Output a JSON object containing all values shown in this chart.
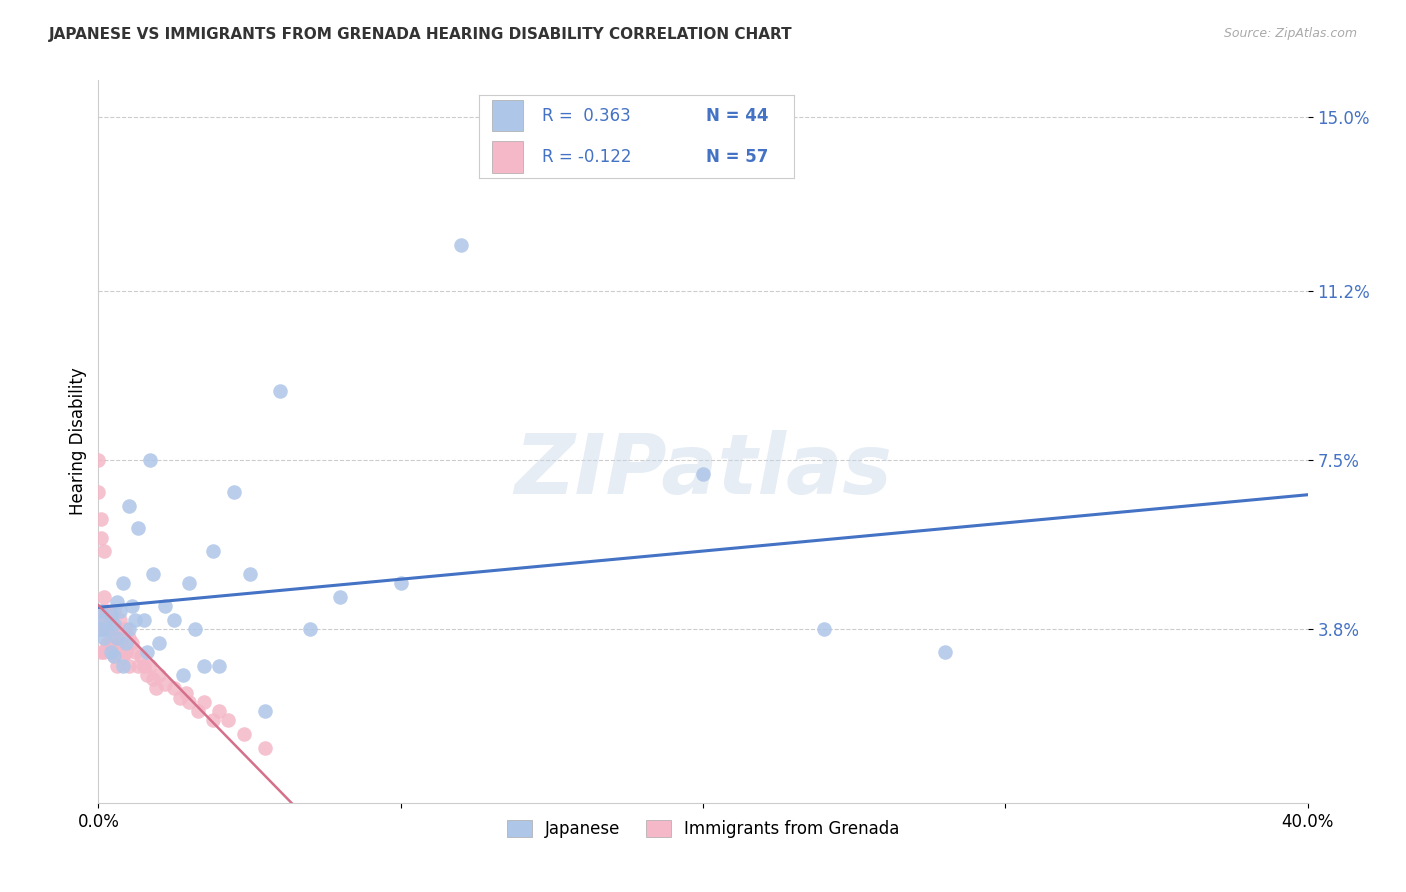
{
  "title": "JAPANESE VS IMMIGRANTS FROM GRENADA HEARING DISABILITY CORRELATION CHART",
  "source": "Source: ZipAtlas.com",
  "ylabel": "Hearing Disability",
  "watermark": "ZIPatlas",
  "xlim": [
    0.0,
    0.4
  ],
  "ylim": [
    0.0,
    0.158
  ],
  "ytick_positions": [
    0.038,
    0.075,
    0.112,
    0.15
  ],
  "ytick_labels": [
    "3.8%",
    "7.5%",
    "11.2%",
    "15.0%"
  ],
  "japanese_R": 0.363,
  "grenada_R": -0.122,
  "japanese_N": 44,
  "grenada_N": 57,
  "japanese_line_color": "#4472c4",
  "grenada_line_solid_color": "#d4708a",
  "grenada_line_dash_color": "#d4708a",
  "japanese_scatter_color": "#aec6e8",
  "grenada_scatter_color": "#f4b8c8",
  "background_color": "#ffffff",
  "grid_color": "#cccccc",
  "legend_r_color": "#4472c4",
  "legend_text_color": "#333333",
  "japanese_x": [
    0.001,
    0.001,
    0.002,
    0.002,
    0.003,
    0.004,
    0.004,
    0.005,
    0.005,
    0.006,
    0.006,
    0.007,
    0.008,
    0.008,
    0.009,
    0.01,
    0.01,
    0.011,
    0.012,
    0.013,
    0.015,
    0.016,
    0.017,
    0.018,
    0.02,
    0.022,
    0.025,
    0.028,
    0.03,
    0.032,
    0.035,
    0.038,
    0.04,
    0.045,
    0.05,
    0.055,
    0.06,
    0.07,
    0.08,
    0.1,
    0.12,
    0.2,
    0.24,
    0.28
  ],
  "japanese_y": [
    0.038,
    0.042,
    0.036,
    0.04,
    0.038,
    0.033,
    0.041,
    0.032,
    0.039,
    0.044,
    0.036,
    0.042,
    0.03,
    0.048,
    0.035,
    0.065,
    0.038,
    0.043,
    0.04,
    0.06,
    0.04,
    0.033,
    0.075,
    0.05,
    0.035,
    0.043,
    0.04,
    0.028,
    0.048,
    0.038,
    0.03,
    0.055,
    0.03,
    0.068,
    0.05,
    0.02,
    0.09,
    0.038,
    0.045,
    0.048,
    0.122,
    0.072,
    0.038,
    0.033
  ],
  "grenada_x": [
    0.0,
    0.0,
    0.0,
    0.001,
    0.001,
    0.001,
    0.001,
    0.001,
    0.001,
    0.002,
    0.002,
    0.002,
    0.002,
    0.002,
    0.003,
    0.003,
    0.003,
    0.003,
    0.004,
    0.004,
    0.004,
    0.005,
    0.005,
    0.005,
    0.006,
    0.006,
    0.006,
    0.007,
    0.007,
    0.008,
    0.008,
    0.009,
    0.009,
    0.01,
    0.01,
    0.011,
    0.012,
    0.013,
    0.014,
    0.015,
    0.016,
    0.017,
    0.018,
    0.019,
    0.02,
    0.022,
    0.025,
    0.027,
    0.029,
    0.03,
    0.033,
    0.035,
    0.038,
    0.04,
    0.043,
    0.048,
    0.055
  ],
  "grenada_y": [
    0.075,
    0.068,
    0.038,
    0.062,
    0.058,
    0.042,
    0.04,
    0.038,
    0.033,
    0.055,
    0.045,
    0.042,
    0.038,
    0.033,
    0.042,
    0.04,
    0.038,
    0.035,
    0.04,
    0.038,
    0.035,
    0.042,
    0.038,
    0.032,
    0.038,
    0.035,
    0.03,
    0.04,
    0.035,
    0.038,
    0.032,
    0.038,
    0.033,
    0.036,
    0.03,
    0.035,
    0.033,
    0.03,
    0.032,
    0.03,
    0.028,
    0.03,
    0.027,
    0.025,
    0.028,
    0.026,
    0.025,
    0.023,
    0.024,
    0.022,
    0.02,
    0.022,
    0.018,
    0.02,
    0.018,
    0.015,
    0.012
  ]
}
